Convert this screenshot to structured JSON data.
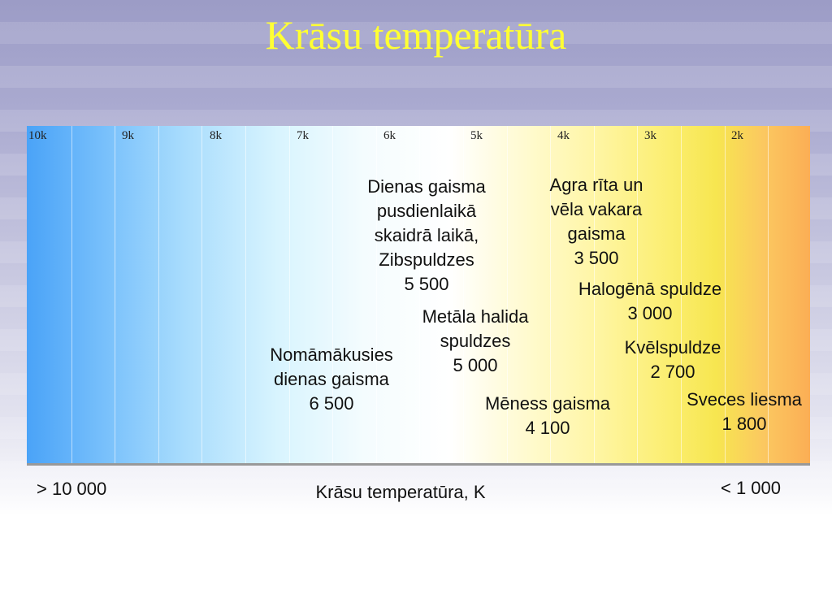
{
  "title": "Krāsu temperatūra",
  "scale_labels": [
    "10k",
    "9k",
    "8k",
    "7k",
    "6k",
    "5k",
    "4k",
    "3k",
    "2k"
  ],
  "annotations": [
    {
      "lines": [
        "Dienas gaisma",
        "pusdienlaikā",
        "skaidrā laikā,",
        "Zibspuldzes",
        "5 500"
      ]
    },
    {
      "lines": [
        "Agra rīta un",
        "vēla vakara",
        "gaisma",
        "3 500"
      ]
    },
    {
      "lines": [
        "Halogēnā spuldze",
        "3 000"
      ]
    },
    {
      "lines": [
        "Metāla halida",
        "spuldzes",
        "5 000"
      ]
    },
    {
      "lines": [
        "Kvēlspuldze",
        "2 700"
      ]
    },
    {
      "lines": [
        "Nomāmākusies",
        "dienas gaisma",
        "6 500"
      ]
    },
    {
      "lines": [
        "Mēness gaisma",
        "4 100"
      ]
    },
    {
      "lines": [
        "Sveces liesma",
        "1 800"
      ]
    }
  ],
  "footer": {
    "left": "> 10 000",
    "center": "Krāsu temperatūra, K",
    "right": "< 1 000"
  }
}
